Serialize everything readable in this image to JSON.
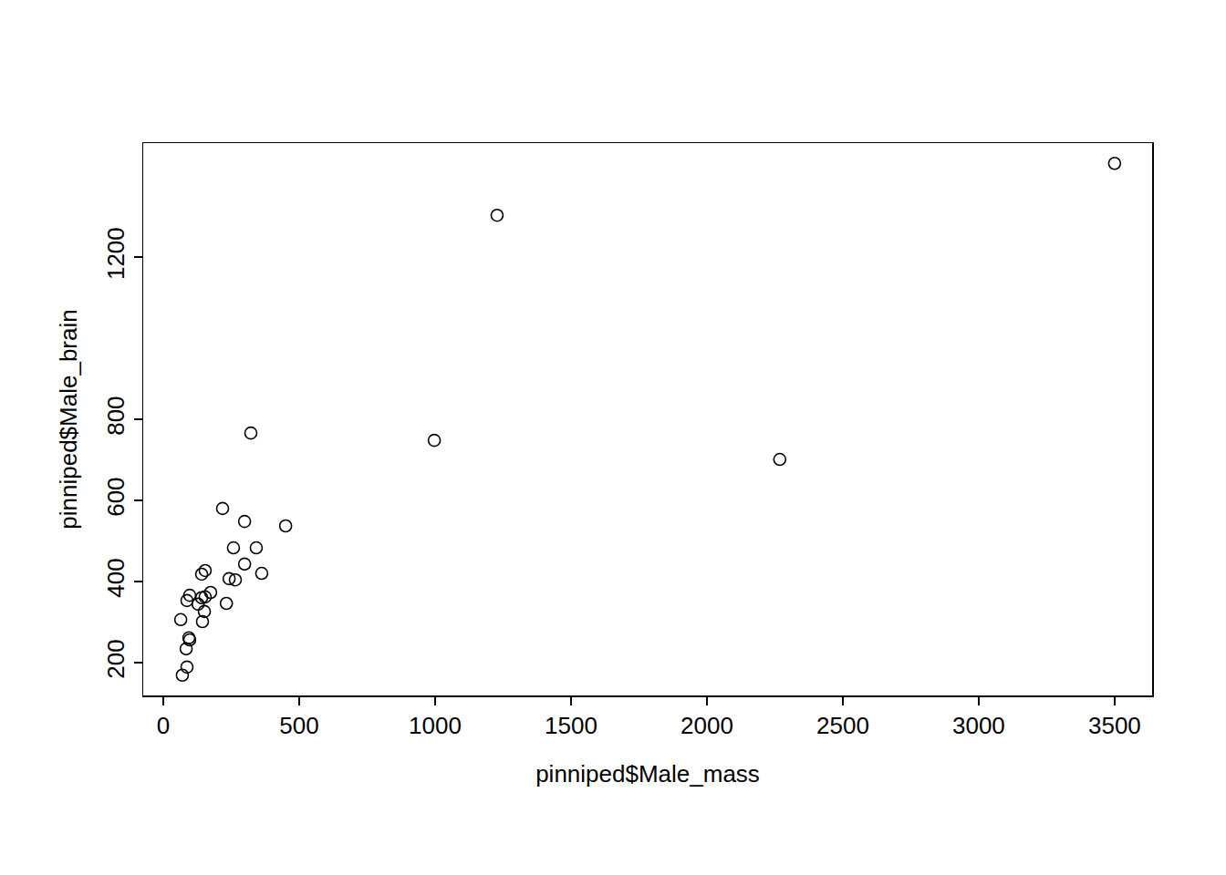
{
  "chart_data": {
    "type": "scatter",
    "x_label": "pinniped$Male_mass",
    "y_label": "pinniped$Male_brain",
    "x": [
      3500,
      1228,
      322,
      997,
      2268,
      218,
      299,
      450,
      258,
      342,
      299,
      154,
      141,
      362,
      242,
      265,
      174,
      97,
      154,
      141,
      87,
      128,
      232,
      151,
      64,
      144,
      94,
      97,
      84,
      87,
      70
    ],
    "values": [
      1431,
      1303,
      766,
      748,
      701,
      580,
      548,
      537,
      483,
      483,
      443,
      427,
      418,
      420,
      407,
      404,
      373,
      366,
      362,
      360,
      353,
      344,
      346,
      326,
      306,
      301,
      261,
      256,
      234,
      189,
      169
    ],
    "color": "#000000",
    "marker": "open_circle",
    "xlim": [
      -74,
      3638
    ],
    "ylim": [
      119,
      1481
    ],
    "xticks": [
      0,
      500,
      1000,
      1500,
      2000,
      2500,
      3000,
      3500
    ],
    "yticks": [
      200,
      400,
      600,
      800,
      1200
    ],
    "grid": false
  }
}
